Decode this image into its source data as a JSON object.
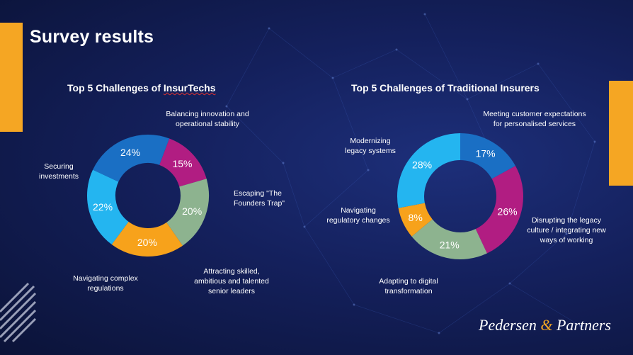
{
  "slide": {
    "title": "Survey results",
    "brand": {
      "left": "Pedersen",
      "amp": "&",
      "right": "Partners"
    }
  },
  "chart_data": [
    {
      "type": "pie",
      "title_pre": "Top 5 Challenges of ",
      "title_em": "InsurTechs",
      "title": "Top 5 Challenges of InsurTechs",
      "categories": [
        "Balancing innovation and operational stability",
        "Escaping \"The Founders Trap\"",
        "Attracting skilled, ambitious and talented senior leaders",
        "Navigating complex regulations",
        "Securing investments"
      ],
      "values": [
        24,
        15,
        20,
        20,
        22
      ],
      "labels": [
        "24%",
        "15%",
        "20%",
        "20%",
        "22%"
      ],
      "colors": [
        "#1a6fc4",
        "#b11d82",
        "#8db38f",
        "#f7a21b",
        "#24b5f0"
      ],
      "donut": true
    },
    {
      "type": "pie",
      "title": "Top 5 Challenges of Traditional Insurers",
      "categories": [
        "Meeting customer expectations for personalised services",
        "Disrupting the legacy culture / integrating new ways of working",
        "Adapting to digital transformation",
        "Navigating regulatory changes",
        "Modernizing legacy systems"
      ],
      "values": [
        17,
        26,
        21,
        8,
        28
      ],
      "labels": [
        "17%",
        "26%",
        "21%",
        "8%",
        "28%"
      ],
      "colors": [
        "#1a6fc4",
        "#b11d82",
        "#8db38f",
        "#f7a21b",
        "#24b5f0"
      ],
      "donut": true
    }
  ],
  "labels_left": {
    "top": [
      "Balancing innovation and",
      "operational stability"
    ],
    "right": [
      "Escaping \"The",
      "Founders Trap\""
    ],
    "bottom_right": [
      "Attracting skilled,",
      "ambitious and talented",
      "senior leaders"
    ],
    "bottom_left": [
      "Navigating complex",
      "regulations"
    ],
    "left": [
      "Securing",
      "investments"
    ]
  },
  "labels_right": {
    "top": [
      "Meeting customer expectations",
      "for personalised services"
    ],
    "right": [
      "Disrupting the legacy",
      "culture / integrating new",
      "ways of working"
    ],
    "bottom": [
      "Adapting to digital",
      "transformation"
    ],
    "left_mid": [
      "Navigating",
      "regulatory changes"
    ],
    "left_top": [
      "Modernizing",
      "legacy systems"
    ]
  }
}
